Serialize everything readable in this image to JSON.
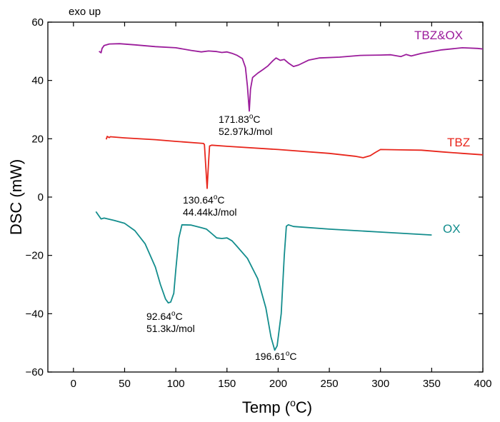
{
  "chart_data": {
    "type": "line",
    "title": "",
    "corner_note": "exo up",
    "xlabel": "Temp (",
    "xlabel_unit": "C)",
    "xlabel_degree": "o",
    "ylabel": "DSC (mW)",
    "xlim": [
      -25,
      400
    ],
    "ylim": [
      -60,
      60
    ],
    "xticks": [
      0,
      50,
      100,
      150,
      200,
      250,
      300,
      350,
      400
    ],
    "yticks": [
      -60,
      -40,
      -20,
      0,
      20,
      40,
      60
    ],
    "grid": false,
    "series": [
      {
        "name": "TBZ&OX",
        "color": "#9b1c9b",
        "points": [
          [
            25,
            50
          ],
          [
            27,
            49.5
          ],
          [
            28,
            51
          ],
          [
            30,
            52
          ],
          [
            35,
            52.5
          ],
          [
            45,
            52.6
          ],
          [
            60,
            52.2
          ],
          [
            80,
            51.6
          ],
          [
            100,
            51.2
          ],
          [
            115,
            50.3
          ],
          [
            125,
            49.8
          ],
          [
            132,
            50.1
          ],
          [
            140,
            49.9
          ],
          [
            145,
            49.6
          ],
          [
            150,
            49.8
          ],
          [
            155,
            49.3
          ],
          [
            160,
            48.6
          ],
          [
            165,
            47.5
          ],
          [
            168,
            44.5
          ],
          [
            170,
            38
          ],
          [
            171.83,
            29.5
          ],
          [
            173,
            37
          ],
          [
            175,
            41
          ],
          [
            180,
            42.5
          ],
          [
            185,
            43.7
          ],
          [
            190,
            45
          ],
          [
            195,
            46.8
          ],
          [
            198,
            47.7
          ],
          [
            202,
            46.9
          ],
          [
            206,
            47.2
          ],
          [
            210,
            46
          ],
          [
            215,
            44.8
          ],
          [
            220,
            45.3
          ],
          [
            230,
            47
          ],
          [
            240,
            47.7
          ],
          [
            260,
            48
          ],
          [
            280,
            48.6
          ],
          [
            300,
            48.7
          ],
          [
            310,
            48.8
          ],
          [
            320,
            48.2
          ],
          [
            325,
            48.9
          ],
          [
            330,
            48.4
          ],
          [
            340,
            49.3
          ],
          [
            360,
            50.5
          ],
          [
            380,
            51.2
          ],
          [
            395,
            51
          ],
          [
            400,
            50.8
          ]
        ]
      },
      {
        "name": "TBZ",
        "color": "#e8261c",
        "points": [
          [
            32,
            19.8
          ],
          [
            33,
            20.8
          ],
          [
            35,
            20.4
          ],
          [
            36,
            20.7
          ],
          [
            50,
            20.3
          ],
          [
            80,
            19.7
          ],
          [
            100,
            19.1
          ],
          [
            120,
            18.6
          ],
          [
            127,
            18.4
          ],
          [
            128,
            18
          ],
          [
            129,
            12
          ],
          [
            130.64,
            3
          ],
          [
            132,
            12
          ],
          [
            133,
            17.5
          ],
          [
            135,
            17.8
          ],
          [
            150,
            17.4
          ],
          [
            200,
            16.3
          ],
          [
            250,
            15
          ],
          [
            275,
            14
          ],
          [
            283,
            13.5
          ],
          [
            290,
            14.2
          ],
          [
            295,
            15.3
          ],
          [
            300,
            16.3
          ],
          [
            320,
            16.2
          ],
          [
            340,
            16.1
          ],
          [
            360,
            15.5
          ],
          [
            380,
            15
          ],
          [
            400,
            14.5
          ]
        ]
      },
      {
        "name": "OX",
        "color": "#138d8d",
        "points": [
          [
            22,
            -5
          ],
          [
            25,
            -6.5
          ],
          [
            27,
            -7.5
          ],
          [
            30,
            -7.2
          ],
          [
            40,
            -8
          ],
          [
            50,
            -9
          ],
          [
            60,
            -11.5
          ],
          [
            70,
            -16
          ],
          [
            80,
            -24
          ],
          [
            85,
            -30
          ],
          [
            90,
            -35
          ],
          [
            92.64,
            -36.3
          ],
          [
            95,
            -36
          ],
          [
            98,
            -33
          ],
          [
            100,
            -25
          ],
          [
            103,
            -14
          ],
          [
            106,
            -9.5
          ],
          [
            115,
            -9.6
          ],
          [
            125,
            -10.5
          ],
          [
            130,
            -11
          ],
          [
            135,
            -12.5
          ],
          [
            140,
            -14
          ],
          [
            145,
            -14.2
          ],
          [
            150,
            -14
          ],
          [
            155,
            -15
          ],
          [
            160,
            -17
          ],
          [
            170,
            -21
          ],
          [
            180,
            -28
          ],
          [
            188,
            -38
          ],
          [
            193,
            -48
          ],
          [
            196.61,
            -52.5
          ],
          [
            199,
            -51
          ],
          [
            203,
            -40
          ],
          [
            206,
            -20
          ],
          [
            208,
            -10
          ],
          [
            210,
            -9.5
          ],
          [
            215,
            -10.1
          ],
          [
            250,
            -11
          ],
          [
            300,
            -12
          ],
          [
            350,
            -13
          ]
        ]
      }
    ],
    "annotations": [
      {
        "id": "tbzox-peak",
        "line1_value": "171.83",
        "line1_degree": "o",
        "line1_unit": "C",
        "line2": "52.97kJ/mol"
      },
      {
        "id": "tbz-peak",
        "line1_value": "130.64",
        "line1_degree": "o",
        "line1_unit": "C",
        "line2": "44.44kJ/mol"
      },
      {
        "id": "ox-peak1",
        "line1_value": "92.64",
        "line1_degree": "o",
        "line1_unit": "C",
        "line2": "51.3kJ/mol"
      },
      {
        "id": "ox-peak2",
        "line1_value": "196.61",
        "line1_degree": "o",
        "line1_unit": "C"
      }
    ]
  }
}
